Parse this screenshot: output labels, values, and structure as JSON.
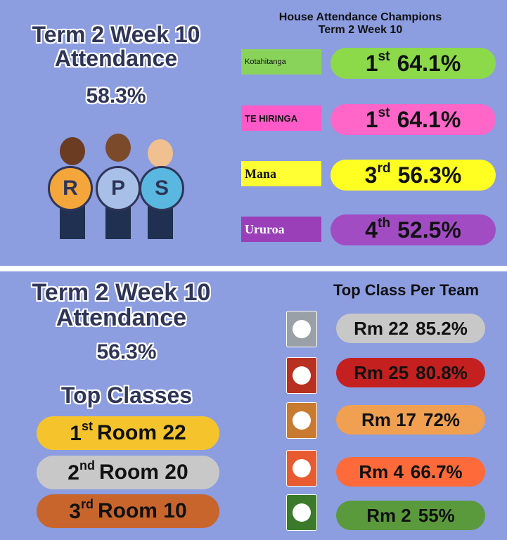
{
  "top": {
    "title_line1": "Term 2 Week 10",
    "title_line2": "Attendance",
    "percent": "58.3%",
    "letters": [
      "R",
      "P",
      "S"
    ],
    "header_line1": "House Attendance Champions",
    "header_line2": "Term 2 Week 10",
    "houses": [
      {
        "name": "Kotahitanga",
        "rank": "1",
        "suffix": "st",
        "value": "64.1%"
      },
      {
        "name": "TE HIRINGA",
        "rank": "1",
        "suffix": "st",
        "value": "64.1%"
      },
      {
        "name": "Mana",
        "rank": "3",
        "suffix": "rd",
        "value": "56.3%"
      },
      {
        "name": "Ururoa",
        "rank": "4",
        "suffix": "th",
        "value": "52.5%"
      }
    ]
  },
  "bottom": {
    "title_line1": "Term 2 Week 10",
    "title_line2": "Attendance",
    "percent": "56.3%",
    "top_classes_heading": "Top Classes",
    "top_classes": [
      {
        "rank": "1",
        "suffix": "st",
        "room": "Room 22"
      },
      {
        "rank": "2",
        "suffix": "nd",
        "room": "Room 20"
      },
      {
        "rank": "3",
        "suffix": "rd",
        "room": "Room 10"
      }
    ],
    "team_heading": "Top Class Per Team",
    "teams": [
      {
        "room": "Rm 22",
        "value": "85.2%"
      },
      {
        "room": "Rm 25",
        "value": "80.8%"
      },
      {
        "room": "Rm 17",
        "value": "72%"
      },
      {
        "room": "Rm 4",
        "value": "66.7%"
      },
      {
        "room": "Rm 2",
        "value": "55%"
      }
    ]
  }
}
